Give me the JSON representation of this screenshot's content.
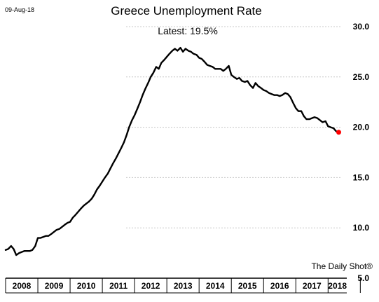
{
  "header": {
    "date": "09-Aug-18",
    "latest_label": "Latest:  19.5%"
  },
  "footer": {
    "source": "The Daily Shot®"
  },
  "colors": {
    "line": "#000000",
    "latest_point": "#ff0000",
    "grid": "#c8c8c8"
  },
  "chart_data": {
    "type": "line",
    "title": "Greece Unemployment Rate",
    "xlabel": "",
    "ylabel": "",
    "ylim": [
      5.0,
      30.0
    ],
    "yticks": [
      "30.0",
      "25.0",
      "20.0",
      "15.0",
      "10.0",
      "5.0"
    ],
    "ytick_values": [
      30.0,
      25.0,
      20.0,
      15.0,
      10.0,
      5.0
    ],
    "year_labels": [
      "2008",
      "2009",
      "2010",
      "2011",
      "2012",
      "2013",
      "2014",
      "2015",
      "2016",
      "2017",
      "2018"
    ],
    "grid": "horizontal dashed",
    "latest": 19.5,
    "series": [
      {
        "x": [
          2008.0,
          2008.08,
          2008.17,
          2008.25,
          2008.33,
          2008.42,
          2008.5,
          2008.58,
          2008.67,
          2008.75,
          2008.83,
          2008.92,
          2009.0,
          2009.08,
          2009.17,
          2009.25,
          2009.33,
          2009.42,
          2009.5,
          2009.58,
          2009.67,
          2009.75,
          2009.83,
          2009.92,
          2010.0,
          2010.08,
          2010.17,
          2010.25,
          2010.33,
          2010.42,
          2010.5,
          2010.58,
          2010.67,
          2010.75,
          2010.83,
          2010.92,
          2011.0,
          2011.08,
          2011.17,
          2011.25,
          2011.33,
          2011.42,
          2011.5,
          2011.58,
          2011.67,
          2011.75,
          2011.83,
          2011.92,
          2012.0,
          2012.08,
          2012.17,
          2012.25,
          2012.33,
          2012.42,
          2012.5,
          2012.58,
          2012.67,
          2012.75,
          2012.83,
          2012.92,
          2013.0,
          2013.08,
          2013.17,
          2013.25,
          2013.33,
          2013.42,
          2013.5,
          2013.58,
          2013.67,
          2013.75,
          2013.83,
          2013.92,
          2014.0,
          2014.08,
          2014.17,
          2014.25,
          2014.33,
          2014.42,
          2014.5,
          2014.58,
          2014.67,
          2014.75,
          2014.83,
          2014.92,
          2015.0,
          2015.08,
          2015.17,
          2015.25,
          2015.33,
          2015.42,
          2015.5,
          2015.58,
          2015.67,
          2015.75,
          2015.83,
          2015.92,
          2016.0,
          2016.08,
          2016.17,
          2016.25,
          2016.33,
          2016.42,
          2016.5,
          2016.58,
          2016.67,
          2016.75,
          2016.83,
          2016.92,
          2017.0,
          2017.08,
          2017.17,
          2017.25,
          2017.33,
          2017.42,
          2017.5,
          2017.58,
          2017.67,
          2017.75,
          2017.83,
          2017.92,
          2018.0,
          2018.08,
          2018.17,
          2018.25,
          2018.33
        ],
        "values": [
          7.8,
          7.9,
          8.2,
          7.9,
          7.3,
          7.5,
          7.6,
          7.7,
          7.7,
          7.7,
          7.8,
          8.2,
          9.0,
          9.0,
          9.1,
          9.2,
          9.2,
          9.4,
          9.6,
          9.8,
          9.9,
          10.1,
          10.3,
          10.5,
          10.6,
          11.0,
          11.3,
          11.6,
          11.9,
          12.2,
          12.4,
          12.6,
          12.9,
          13.3,
          13.8,
          14.2,
          14.6,
          15.0,
          15.4,
          15.9,
          16.4,
          16.9,
          17.4,
          17.9,
          18.5,
          19.2,
          20.0,
          20.7,
          21.2,
          21.8,
          22.5,
          23.2,
          23.8,
          24.4,
          25.0,
          25.4,
          26.0,
          25.8,
          26.4,
          26.7,
          27.0,
          27.3,
          27.6,
          27.8,
          27.6,
          27.9,
          27.5,
          27.8,
          27.6,
          27.5,
          27.3,
          27.2,
          26.9,
          26.8,
          26.5,
          26.2,
          26.1,
          26.0,
          25.8,
          25.8,
          25.8,
          25.6,
          25.8,
          26.1,
          25.2,
          25.0,
          24.8,
          24.9,
          24.6,
          24.5,
          24.6,
          24.2,
          23.9,
          24.4,
          24.1,
          23.9,
          23.7,
          23.6,
          23.4,
          23.3,
          23.2,
          23.2,
          23.1,
          23.2,
          23.4,
          23.3,
          23.0,
          22.4,
          21.9,
          21.6,
          21.6,
          21.1,
          20.8,
          20.8,
          20.9,
          21.0,
          20.9,
          20.7,
          20.5,
          20.6,
          20.1,
          20.0,
          19.9,
          19.6,
          19.5
        ]
      }
    ]
  }
}
